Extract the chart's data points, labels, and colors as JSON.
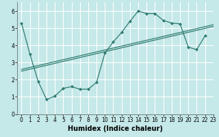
{
  "xlabel": "Humidex (Indice chaleur)",
  "bg_color": "#c5e8e8",
  "grid_color": "#ffffff",
  "line_color": "#2d7a6e",
  "marker": "D",
  "marker_size": 2.5,
  "xlim": [
    -0.5,
    23
  ],
  "ylim": [
    0,
    6.5
  ],
  "yticks": [
    0,
    1,
    2,
    3,
    4,
    5,
    6
  ],
  "xticks": [
    0,
    1,
    2,
    3,
    4,
    5,
    6,
    7,
    8,
    9,
    10,
    11,
    12,
    13,
    14,
    15,
    16,
    17,
    18,
    19,
    20,
    21,
    22,
    23
  ],
  "main_x": [
    0,
    1,
    2,
    3,
    4,
    5,
    6,
    7,
    8,
    9,
    10,
    11,
    12,
    13,
    14,
    15,
    16,
    17,
    18,
    19,
    20,
    21,
    22
  ],
  "main_y": [
    5.3,
    3.5,
    1.9,
    0.85,
    1.05,
    1.5,
    1.6,
    1.45,
    1.45,
    1.85,
    3.55,
    4.2,
    4.75,
    5.4,
    6.0,
    5.85,
    5.85,
    5.45,
    5.3,
    5.25,
    3.9,
    3.75,
    4.55
  ],
  "trend1_x": [
    0,
    23
  ],
  "trend1_y": [
    2.5,
    5.1
  ],
  "trend2_x": [
    0,
    23
  ],
  "trend2_y": [
    2.6,
    5.2
  ],
  "fontsize_xlabel": 7,
  "fontsize_tick": 5.5,
  "lw": 0.9
}
